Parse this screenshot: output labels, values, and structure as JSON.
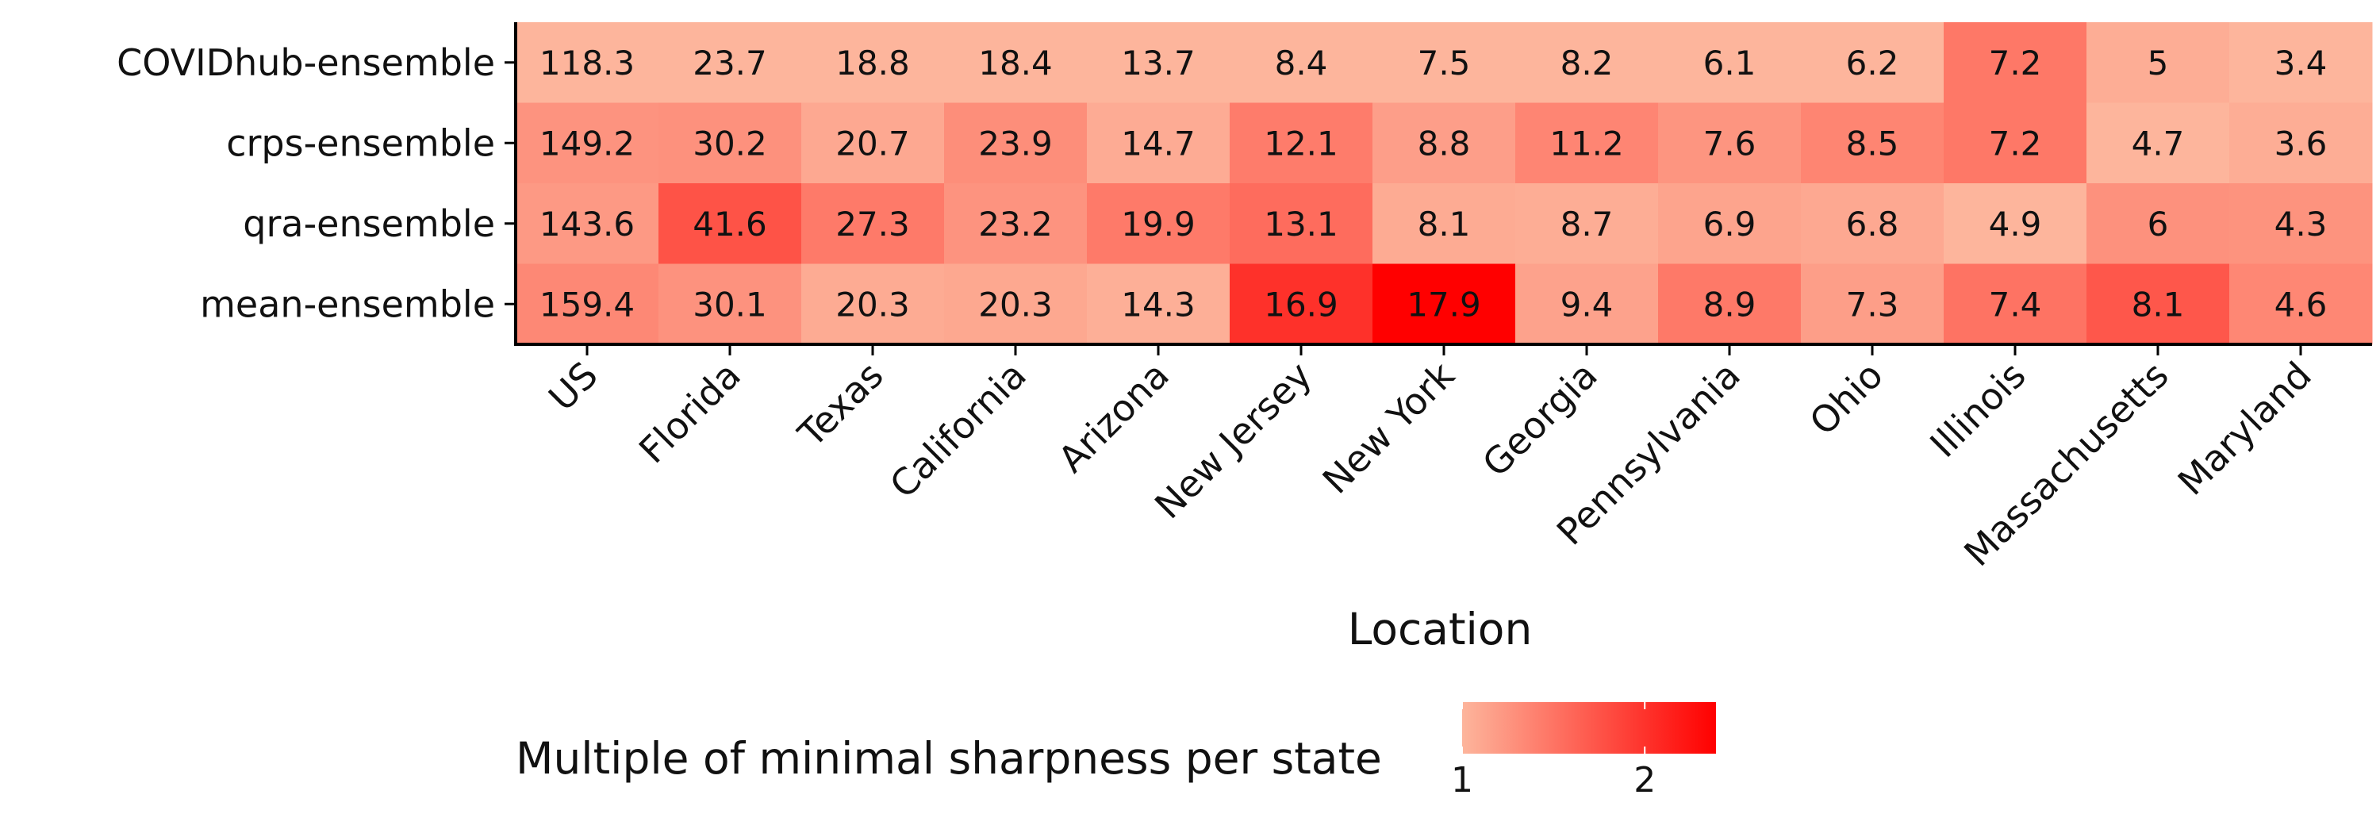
{
  "chart_data": {
    "type": "heatmap",
    "xlabel": "Location",
    "ylabel": "",
    "x": [
      "US",
      "Florida",
      "Texas",
      "California",
      "Arizona",
      "New Jersey",
      "New York",
      "Georgia",
      "Pennsylvania",
      "Ohio",
      "Illinois",
      "Massachusetts",
      "Maryland"
    ],
    "y": [
      "COVIDhub-ensemble",
      "crps-ensemble",
      "qra-ensemble",
      "mean-ensemble"
    ],
    "values": [
      [
        118.3,
        23.7,
        18.8,
        18.4,
        13.7,
        8.4,
        7.5,
        8.2,
        6.1,
        6.2,
        7.2,
        5,
        3.4
      ],
      [
        149.2,
        30.2,
        20.7,
        23.9,
        14.7,
        12.1,
        8.8,
        11.2,
        7.6,
        8.5,
        7.2,
        4.7,
        3.6
      ],
      [
        143.6,
        41.6,
        27.3,
        23.2,
        19.9,
        13.1,
        8.1,
        8.7,
        6.9,
        6.8,
        4.9,
        6,
        4.3
      ],
      [
        159.4,
        30.1,
        20.3,
        20.3,
        14.3,
        16.9,
        17.9,
        9.4,
        8.9,
        7.3,
        7.4,
        8.1,
        4.6
      ]
    ],
    "color_scale": {
      "title": "Multiple of minimal sharpness per state",
      "ticks": [
        1,
        2
      ],
      "range": [
        1,
        2.39
      ],
      "color_low": "#fdb59c",
      "color_high": "#ff0000"
    },
    "legend_position": "bottom"
  }
}
